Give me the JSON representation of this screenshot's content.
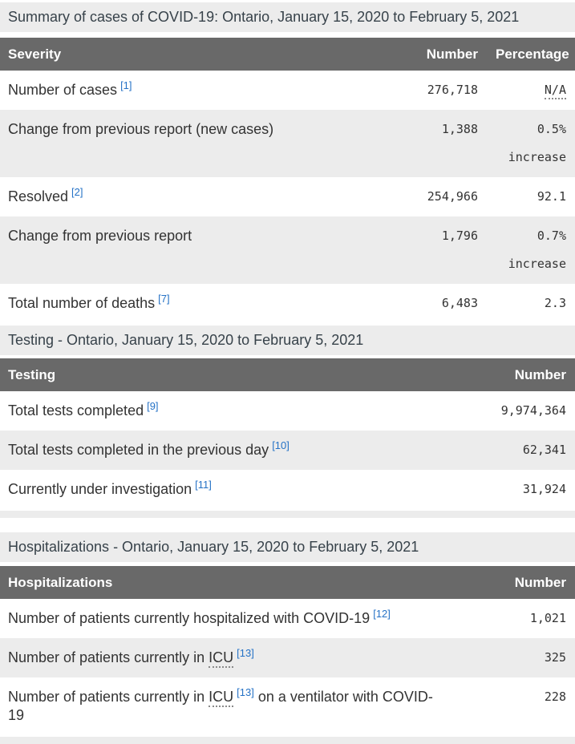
{
  "colors": {
    "header_bg": "#696969",
    "caption_bg": "#ececec",
    "stripe_bg": "#ececec",
    "link_blue": "#2572c6",
    "body_text": "#333333"
  },
  "summary": {
    "caption": "Summary of cases of COVID-19: Ontario, January 15, 2020 to February 5, 2021",
    "headers": {
      "col1": "Severity",
      "col2": "Number",
      "col3": "Percentage"
    },
    "rows": [
      {
        "pre": "Number of cases",
        "footnote": "[1]",
        "number": "276,718",
        "pct1": "N/A"
      },
      {
        "pre": "Change from previous report (new cases)",
        "number": "1,388",
        "pct1": "0.5%",
        "pct2": "increase"
      },
      {
        "pre": "Resolved",
        "footnote": "[2]",
        "number": "254,966",
        "pct1": "92.1"
      },
      {
        "pre": "Change from previous report",
        "number": "1,796",
        "pct1": "0.7%",
        "pct2": "increase"
      },
      {
        "pre": "Total number of deaths",
        "footnote": "[7]",
        "number": "6,483",
        "pct1": "2.3"
      }
    ]
  },
  "testing": {
    "caption": "Testing - Ontario, January 15, 2020 to February 5, 2021",
    "headers": {
      "col1": "Testing",
      "col2": "Number"
    },
    "rows": [
      {
        "pre": "Total tests completed",
        "footnote": "[9]",
        "number": "9,974,364"
      },
      {
        "pre": "Total tests completed in the previous day",
        "footnote": "[10]",
        "number": "62,341"
      },
      {
        "pre": "Currently under investigation",
        "footnote": "[11]",
        "number": "31,924"
      }
    ]
  },
  "hospitalizations": {
    "caption": "Hospitalizations - Ontario, January 15, 2020 to February 5, 2021",
    "headers": {
      "col1": "Hospitalizations",
      "col2": "Number"
    },
    "rows": [
      {
        "pre": "Number of patients currently hospitalized with COVID-19",
        "footnote": "[12]",
        "number": "1,021"
      },
      {
        "pre": "Number of patients currently in ",
        "abbr": "ICU",
        "footnote": "[13]",
        "number": "325"
      },
      {
        "pre": "Number of patients currently in ",
        "abbr": "ICU",
        "footnote": "[13]",
        "post": " on a ventilator with COVID-19",
        "number": "228"
      }
    ]
  }
}
